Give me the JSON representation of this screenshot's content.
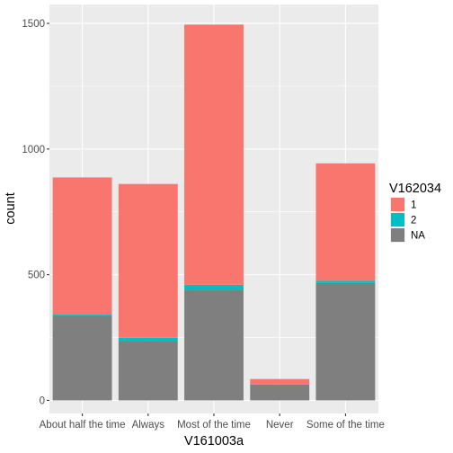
{
  "chart_data": {
    "type": "bar",
    "stacked": true,
    "title": "",
    "xlabel": "V161003a",
    "ylabel": "count",
    "categories": [
      "About half the time",
      "Always",
      "Most of the time",
      "Never",
      "Some of the time"
    ],
    "series": [
      {
        "name": "1",
        "color": "#F8766D",
        "values": [
          546,
          612,
          1035,
          20,
          467
        ]
      },
      {
        "name": "2",
        "color": "#00BFC4",
        "values": [
          5,
          13,
          20,
          2,
          9
        ]
      },
      {
        "name": "NA",
        "color": "#7F7F7F",
        "values": [
          336,
          236,
          440,
          63,
          467
        ]
      }
    ],
    "ylim": [
      -52,
      1575
    ],
    "yticks": [
      0,
      500,
      1000,
      1500
    ],
    "legend": {
      "title": "V162034",
      "placement": "right",
      "entries": [
        "1",
        "2",
        "NA"
      ]
    },
    "panel_background": "#EBEBEB",
    "grid": true
  }
}
